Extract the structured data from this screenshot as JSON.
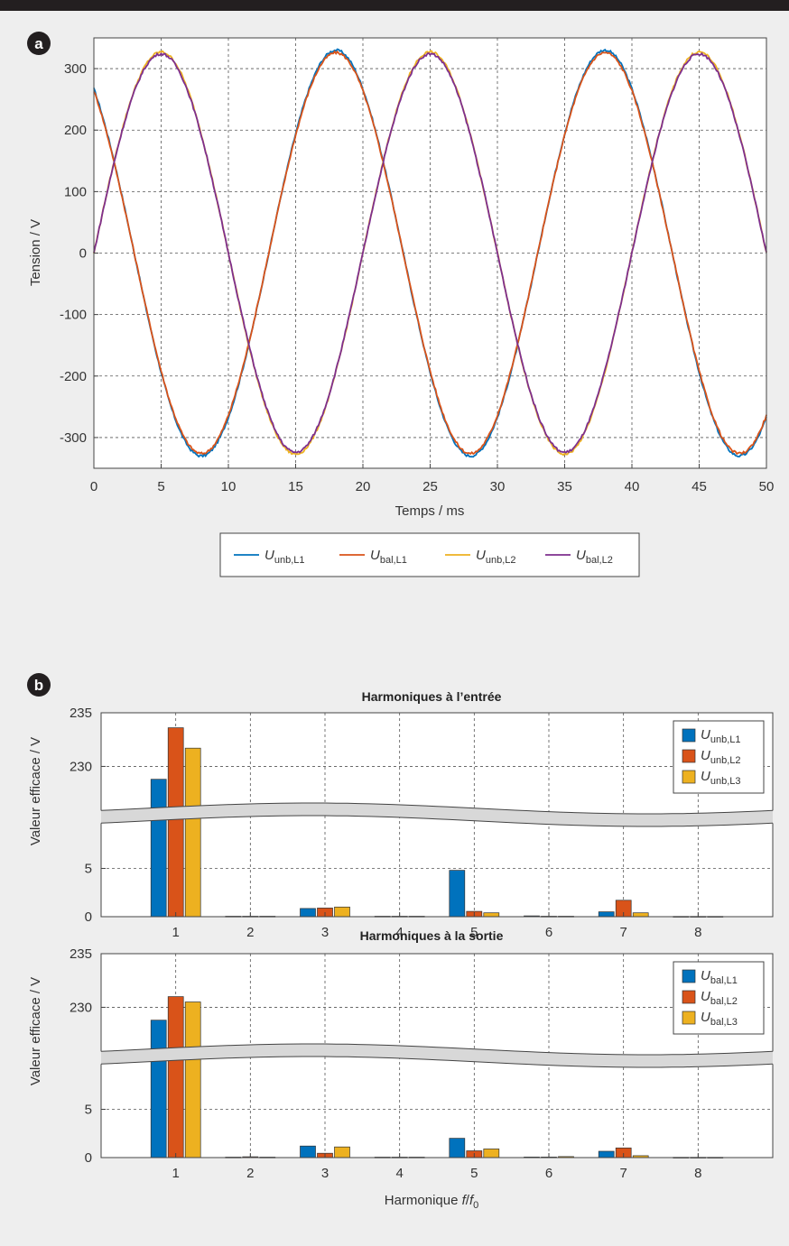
{
  "colors": {
    "background": "#eeeeee",
    "top_bar": "#231f20",
    "blue": "#0072bd",
    "orange": "#d95319",
    "yellow": "#edb120",
    "purple": "#7e2f8e"
  },
  "panel_a": {
    "badge": "a",
    "xlabel": "Temps / ms",
    "ylabel": "Tension / V",
    "legend": [
      {
        "main": "U",
        "sub": "unb,L1",
        "color": "#0072bd"
      },
      {
        "main": "U",
        "sub": "bal,L1",
        "color": "#d95319"
      },
      {
        "main": "U",
        "sub": "unb,L2",
        "color": "#edb120"
      },
      {
        "main": "U",
        "sub": "bal,L2",
        "color": "#7e2f8e"
      }
    ]
  },
  "panel_b": {
    "badge": "b",
    "top": {
      "title": "Harmoniques à l’entrée",
      "ylabel": "Valeur efficace / V",
      "legend": [
        {
          "main": "U",
          "sub": "unb,L1",
          "color": "#0072bd"
        },
        {
          "main": "U",
          "sub": "unb,L2",
          "color": "#d95319"
        },
        {
          "main": "U",
          "sub": "unb,L3",
          "color": "#edb120"
        }
      ]
    },
    "bottom": {
      "title": "Harmoniques à la sortie",
      "ylabel": "Valeur efficace / V",
      "xlabel_main": "Harmonique ",
      "xlabel_f": "f",
      "xlabel_slash": "/",
      "xlabel_f0": "f",
      "xlabel_f0_sub": "0",
      "legend": [
        {
          "main": "U",
          "sub": "bal,L1",
          "color": "#0072bd"
        },
        {
          "main": "U",
          "sub": "bal,L2",
          "color": "#d95319"
        },
        {
          "main": "U",
          "sub": "bal,L3",
          "color": "#edb120"
        }
      ]
    }
  },
  "chart_data": [
    {
      "type": "line",
      "xlabel": "Temps / ms",
      "ylabel": "Tension / V",
      "xlim": [
        0,
        50
      ],
      "ylim": [
        -350,
        350
      ],
      "xticks": [
        0,
        5,
        10,
        15,
        20,
        25,
        30,
        35,
        40,
        45,
        50
      ],
      "yticks": [
        -300,
        -200,
        -100,
        0,
        100,
        200,
        300
      ],
      "grid": true,
      "legend_position": "below",
      "series": [
        {
          "name": "U unb,L1",
          "color": "#0072bd",
          "amplitude": 330,
          "frequency_hz": 50,
          "x_at_peak_ms": [
            18,
            38
          ],
          "x_at_trough_ms": [
            8,
            28,
            48
          ],
          "start_value": 260,
          "end_value": -260
        },
        {
          "name": "U bal,L1",
          "color": "#d95319",
          "amplitude": 326,
          "frequency_hz": 50,
          "x_at_peak_ms": [
            18,
            38
          ],
          "x_at_trough_ms": [
            8,
            28,
            48
          ],
          "start_value": 260,
          "end_value": -260
        },
        {
          "name": "U unb,L2",
          "color": "#edb120",
          "amplitude": 327,
          "frequency_hz": 50,
          "x_at_peak_ms": [
            5,
            25,
            45
          ],
          "x_at_trough_ms": [
            15,
            35
          ],
          "start_value": 30,
          "end_value": -30
        },
        {
          "name": "U bal,L2",
          "color": "#7e2f8e",
          "amplitude": 324,
          "frequency_hz": 50,
          "x_at_peak_ms": [
            5,
            25,
            45
          ],
          "x_at_trough_ms": [
            15,
            35
          ],
          "start_value": 30,
          "end_value": -30
        }
      ]
    },
    {
      "type": "bar",
      "title": "Harmoniques à l’entrée",
      "ylabel": "Valeur efficace / V",
      "categories": [
        "1",
        "2",
        "3",
        "4",
        "5",
        "6",
        "7",
        "8"
      ],
      "xlim": [
        0,
        9
      ],
      "ylim_upper": [
        226,
        235
      ],
      "ylim_lower": [
        0,
        10
      ],
      "yticks": [
        0,
        5,
        230,
        235
      ],
      "axis_break": true,
      "grid": true,
      "legend_position": "top-right",
      "series": [
        {
          "name": "U unb,L1",
          "color": "#0072bd",
          "values": [
            228.8,
            0.05,
            0.85,
            0.05,
            4.8,
            0.08,
            0.5,
            0.03
          ]
        },
        {
          "name": "U unb,L2",
          "color": "#d95319",
          "values": [
            233.6,
            0.05,
            0.9,
            0.05,
            0.55,
            0.05,
            1.7,
            0.03
          ]
        },
        {
          "name": "U unb,L3",
          "color": "#edb120",
          "values": [
            231.7,
            0.05,
            1.0,
            0.05,
            0.4,
            0.05,
            0.4,
            0.03
          ]
        }
      ]
    },
    {
      "type": "bar",
      "title": "Harmoniques à la sortie",
      "ylabel": "Valeur efficace / V",
      "xlabel": "Harmonique f/f0",
      "categories": [
        "1",
        "2",
        "3",
        "4",
        "5",
        "6",
        "7",
        "8"
      ],
      "xlim": [
        0,
        9
      ],
      "ylim_upper": [
        226,
        235
      ],
      "ylim_lower": [
        0,
        10
      ],
      "yticks": [
        0,
        5,
        230,
        235
      ],
      "axis_break": true,
      "grid": true,
      "legend_position": "top-right",
      "series": [
        {
          "name": "U bal,L1",
          "color": "#0072bd",
          "values": [
            228.8,
            0.05,
            1.2,
            0.05,
            2.0,
            0.06,
            0.65,
            0.03
          ]
        },
        {
          "name": "U bal,L2",
          "color": "#d95319",
          "values": [
            231.0,
            0.08,
            0.45,
            0.05,
            0.7,
            0.06,
            1.0,
            0.03
          ]
        },
        {
          "name": "U bal,L3",
          "color": "#edb120",
          "values": [
            230.5,
            0.05,
            1.1,
            0.05,
            0.9,
            0.1,
            0.2,
            0.03
          ]
        }
      ]
    }
  ]
}
